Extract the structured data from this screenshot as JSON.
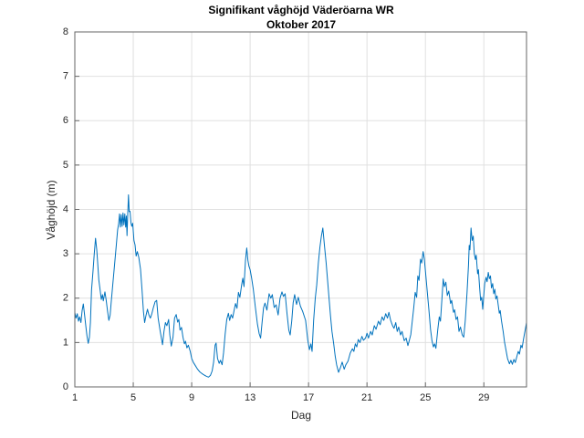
{
  "colors": {
    "background": "#ffffff",
    "line": "#0072BD",
    "grid": "#e0e0e0",
    "axis_box": "#666666",
    "tick_label": "#262626",
    "title_text": "#000000"
  },
  "chart_data": {
    "type": "line",
    "title": "Signifikant våghöjd Väderöarna WR",
    "subtitle": "Oktober 2017",
    "xlabel": "Dag",
    "ylabel": "Våghöjd (m)",
    "xlim": [
      1,
      31.92
    ],
    "ylim": [
      0,
      8
    ],
    "x_ticks": [
      1,
      5,
      9,
      13,
      17,
      21,
      25,
      29
    ],
    "y_ticks": [
      0,
      1,
      2,
      3,
      4,
      5,
      6,
      7,
      8
    ],
    "grid": true,
    "legend": "none",
    "series_name": "Signifikant våghöjd (m)",
    "points": [
      [
        1.0,
        1.68
      ],
      [
        1.08,
        1.55
      ],
      [
        1.17,
        1.65
      ],
      [
        1.25,
        1.48
      ],
      [
        1.33,
        1.58
      ],
      [
        1.42,
        1.45
      ],
      [
        1.5,
        1.72
      ],
      [
        1.58,
        1.87
      ],
      [
        1.67,
        1.62
      ],
      [
        1.75,
        1.38
      ],
      [
        1.83,
        1.15
      ],
      [
        1.92,
        0.98
      ],
      [
        2.0,
        1.12
      ],
      [
        2.07,
        1.45
      ],
      [
        2.14,
        2.18
      ],
      [
        2.24,
        2.6
      ],
      [
        2.33,
        3.0
      ],
      [
        2.42,
        3.35
      ],
      [
        2.5,
        3.1
      ],
      [
        2.54,
        2.9
      ],
      [
        2.64,
        2.41
      ],
      [
        2.72,
        2.22
      ],
      [
        2.81,
        1.97
      ],
      [
        2.89,
        2.08
      ],
      [
        2.95,
        1.94
      ],
      [
        3.06,
        2.14
      ],
      [
        3.15,
        1.95
      ],
      [
        3.24,
        1.7
      ],
      [
        3.33,
        1.5
      ],
      [
        3.42,
        1.62
      ],
      [
        3.48,
        1.87
      ],
      [
        3.58,
        2.24
      ],
      [
        3.69,
        2.65
      ],
      [
        3.79,
        3.02
      ],
      [
        3.85,
        3.23
      ],
      [
        3.93,
        3.54
      ],
      [
        4.0,
        3.68
      ],
      [
        4.06,
        3.9
      ],
      [
        4.12,
        3.6
      ],
      [
        4.18,
        3.88
      ],
      [
        4.24,
        3.62
      ],
      [
        4.3,
        3.92
      ],
      [
        4.36,
        3.65
      ],
      [
        4.42,
        3.9
      ],
      [
        4.48,
        3.6
      ],
      [
        4.53,
        3.85
      ],
      [
        4.57,
        3.41
      ],
      [
        4.62,
        3.9
      ],
      [
        4.67,
        4.33
      ],
      [
        4.72,
        3.95
      ],
      [
        4.78,
        3.96
      ],
      [
        4.84,
        3.7
      ],
      [
        4.9,
        3.62
      ],
      [
        4.96,
        3.69
      ],
      [
        5.05,
        3.3
      ],
      [
        5.12,
        3.2
      ],
      [
        5.2,
        2.95
      ],
      [
        5.28,
        3.05
      ],
      [
        5.38,
        2.92
      ],
      [
        5.5,
        2.65
      ],
      [
        5.6,
        2.2
      ],
      [
        5.7,
        1.7
      ],
      [
        5.78,
        1.45
      ],
      [
        5.88,
        1.62
      ],
      [
        5.97,
        1.75
      ],
      [
        6.07,
        1.62
      ],
      [
        6.17,
        1.55
      ],
      [
        6.27,
        1.65
      ],
      [
        6.37,
        1.78
      ],
      [
        6.5,
        1.92
      ],
      [
        6.6,
        1.95
      ],
      [
        6.7,
        1.55
      ],
      [
        6.84,
        1.26
      ],
      [
        6.95,
        1.05
      ],
      [
        7.0,
        0.95
      ],
      [
        7.1,
        1.25
      ],
      [
        7.2,
        1.45
      ],
      [
        7.3,
        1.38
      ],
      [
        7.42,
        1.52
      ],
      [
        7.5,
        1.17
      ],
      [
        7.6,
        0.92
      ],
      [
        7.72,
        1.12
      ],
      [
        7.83,
        1.55
      ],
      [
        7.94,
        1.63
      ],
      [
        8.04,
        1.46
      ],
      [
        8.12,
        1.52
      ],
      [
        8.2,
        1.28
      ],
      [
        8.3,
        1.34
      ],
      [
        8.4,
        1.12
      ],
      [
        8.5,
        0.97
      ],
      [
        8.58,
        1.03
      ],
      [
        8.67,
        0.88
      ],
      [
        8.77,
        0.94
      ],
      [
        8.9,
        0.8
      ],
      [
        9.0,
        0.64
      ],
      [
        9.12,
        0.55
      ],
      [
        9.25,
        0.48
      ],
      [
        9.4,
        0.4
      ],
      [
        9.55,
        0.34
      ],
      [
        9.7,
        0.3
      ],
      [
        9.85,
        0.27
      ],
      [
        10.0,
        0.24
      ],
      [
        10.15,
        0.22
      ],
      [
        10.28,
        0.26
      ],
      [
        10.4,
        0.36
      ],
      [
        10.5,
        0.56
      ],
      [
        10.6,
        0.94
      ],
      [
        10.67,
        0.99
      ],
      [
        10.77,
        0.64
      ],
      [
        10.88,
        0.53
      ],
      [
        10.97,
        0.6
      ],
      [
        11.08,
        0.5
      ],
      [
        11.18,
        0.77
      ],
      [
        11.29,
        1.18
      ],
      [
        11.4,
        1.52
      ],
      [
        11.51,
        1.66
      ],
      [
        11.6,
        1.5
      ],
      [
        11.7,
        1.63
      ],
      [
        11.8,
        1.55
      ],
      [
        11.9,
        1.72
      ],
      [
        12.0,
        1.88
      ],
      [
        12.1,
        1.77
      ],
      [
        12.2,
        2.13
      ],
      [
        12.3,
        2.02
      ],
      [
        12.42,
        2.3
      ],
      [
        12.5,
        2.45
      ],
      [
        12.58,
        2.26
      ],
      [
        12.68,
        2.85
      ],
      [
        12.77,
        3.13
      ],
      [
        12.85,
        2.85
      ],
      [
        12.92,
        2.72
      ],
      [
        13.0,
        2.64
      ],
      [
        13.1,
        2.46
      ],
      [
        13.22,
        2.2
      ],
      [
        13.35,
        1.82
      ],
      [
        13.5,
        1.42
      ],
      [
        13.62,
        1.2
      ],
      [
        13.72,
        1.1
      ],
      [
        13.82,
        1.45
      ],
      [
        13.92,
        1.78
      ],
      [
        14.02,
        1.89
      ],
      [
        14.15,
        1.73
      ],
      [
        14.3,
        2.1
      ],
      [
        14.42,
        2.0
      ],
      [
        14.52,
        2.08
      ],
      [
        14.65,
        1.79
      ],
      [
        14.78,
        1.85
      ],
      [
        14.92,
        1.62
      ],
      [
        15.05,
        2.0
      ],
      [
        15.18,
        2.14
      ],
      [
        15.28,
        2.04
      ],
      [
        15.4,
        2.1
      ],
      [
        15.52,
        1.66
      ],
      [
        15.65,
        1.28
      ],
      [
        15.74,
        1.17
      ],
      [
        15.85,
        1.48
      ],
      [
        15.95,
        1.9
      ],
      [
        16.05,
        2.08
      ],
      [
        16.18,
        1.86
      ],
      [
        16.3,
        2.02
      ],
      [
        16.44,
        1.82
      ],
      [
        16.6,
        1.7
      ],
      [
        16.8,
        1.5
      ],
      [
        16.95,
        1.05
      ],
      [
        17.06,
        0.84
      ],
      [
        17.16,
        0.97
      ],
      [
        17.24,
        0.8
      ],
      [
        17.35,
        1.5
      ],
      [
        17.46,
        2.0
      ],
      [
        17.56,
        2.3
      ],
      [
        17.67,
        2.8
      ],
      [
        17.78,
        3.15
      ],
      [
        17.88,
        3.4
      ],
      [
        17.98,
        3.58
      ],
      [
        18.08,
        3.22
      ],
      [
        18.2,
        2.8
      ],
      [
        18.3,
        2.4
      ],
      [
        18.4,
        2.0
      ],
      [
        18.5,
        1.6
      ],
      [
        18.6,
        1.25
      ],
      [
        18.72,
        0.97
      ],
      [
        18.82,
        0.7
      ],
      [
        18.92,
        0.5
      ],
      [
        19.05,
        0.33
      ],
      [
        19.18,
        0.43
      ],
      [
        19.3,
        0.56
      ],
      [
        19.44,
        0.4
      ],
      [
        19.55,
        0.5
      ],
      [
        19.7,
        0.58
      ],
      [
        19.85,
        0.76
      ],
      [
        20.0,
        0.86
      ],
      [
        20.1,
        0.8
      ],
      [
        20.2,
        0.97
      ],
      [
        20.3,
        0.9
      ],
      [
        20.4,
        1.07
      ],
      [
        20.52,
        1.0
      ],
      [
        20.65,
        1.14
      ],
      [
        20.76,
        1.05
      ],
      [
        20.9,
        1.1
      ],
      [
        21.0,
        1.21
      ],
      [
        21.1,
        1.1
      ],
      [
        21.25,
        1.25
      ],
      [
        21.36,
        1.17
      ],
      [
        21.5,
        1.38
      ],
      [
        21.62,
        1.3
      ],
      [
        21.78,
        1.48
      ],
      [
        21.9,
        1.4
      ],
      [
        22.03,
        1.58
      ],
      [
        22.15,
        1.5
      ],
      [
        22.28,
        1.65
      ],
      [
        22.4,
        1.55
      ],
      [
        22.5,
        1.68
      ],
      [
        22.62,
        1.5
      ],
      [
        22.75,
        1.38
      ],
      [
        22.85,
        1.32
      ],
      [
        22.97,
        1.45
      ],
      [
        23.07,
        1.25
      ],
      [
        23.17,
        1.35
      ],
      [
        23.3,
        1.17
      ],
      [
        23.4,
        1.25
      ],
      [
        23.55,
        1.04
      ],
      [
        23.68,
        1.1
      ],
      [
        23.8,
        0.93
      ],
      [
        23.9,
        1.05
      ],
      [
        24.0,
        1.18
      ],
      [
        24.1,
        1.48
      ],
      [
        24.2,
        1.78
      ],
      [
        24.3,
        2.13
      ],
      [
        24.4,
        2.02
      ],
      [
        24.48,
        2.5
      ],
      [
        24.56,
        2.4
      ],
      [
        24.66,
        2.88
      ],
      [
        24.74,
        2.79
      ],
      [
        24.84,
        3.05
      ],
      [
        24.92,
        2.9
      ],
      [
        25.02,
        2.55
      ],
      [
        25.13,
        2.13
      ],
      [
        25.24,
        1.72
      ],
      [
        25.35,
        1.3
      ],
      [
        25.45,
        1.04
      ],
      [
        25.55,
        0.9
      ],
      [
        25.63,
        0.97
      ],
      [
        25.72,
        0.87
      ],
      [
        25.85,
        1.3
      ],
      [
        25.95,
        1.58
      ],
      [
        26.03,
        1.48
      ],
      [
        26.13,
        1.98
      ],
      [
        26.22,
        2.43
      ],
      [
        26.3,
        2.26
      ],
      [
        26.4,
        2.36
      ],
      [
        26.5,
        2.06
      ],
      [
        26.6,
        2.16
      ],
      [
        26.72,
        1.88
      ],
      [
        26.8,
        1.95
      ],
      [
        26.92,
        1.68
      ],
      [
        27.0,
        1.74
      ],
      [
        27.1,
        1.52
      ],
      [
        27.2,
        1.58
      ],
      [
        27.3,
        1.25
      ],
      [
        27.4,
        1.35
      ],
      [
        27.52,
        1.17
      ],
      [
        27.62,
        1.12
      ],
      [
        27.73,
        1.5
      ],
      [
        27.85,
        2.12
      ],
      [
        27.95,
        2.74
      ],
      [
        28.0,
        3.19
      ],
      [
        28.05,
        3.09
      ],
      [
        28.12,
        3.58
      ],
      [
        28.2,
        3.3
      ],
      [
        28.27,
        3.4
      ],
      [
        28.35,
        3.0
      ],
      [
        28.42,
        2.87
      ],
      [
        28.48,
        2.97
      ],
      [
        28.57,
        2.55
      ],
      [
        28.63,
        2.64
      ],
      [
        28.7,
        2.27
      ],
      [
        28.78,
        1.95
      ],
      [
        28.85,
        2.02
      ],
      [
        28.92,
        1.75
      ],
      [
        29.0,
        2.1
      ],
      [
        29.06,
        2.33
      ],
      [
        29.15,
        2.47
      ],
      [
        29.22,
        2.37
      ],
      [
        29.3,
        2.58
      ],
      [
        29.38,
        2.44
      ],
      [
        29.45,
        2.5
      ],
      [
        29.52,
        2.23
      ],
      [
        29.6,
        2.33
      ],
      [
        29.68,
        2.1
      ],
      [
        29.75,
        2.2
      ],
      [
        29.82,
        1.98
      ],
      [
        29.9,
        2.05
      ],
      [
        29.98,
        1.86
      ],
      [
        30.06,
        1.66
      ],
      [
        30.12,
        1.72
      ],
      [
        30.2,
        1.5
      ],
      [
        30.32,
        1.25
      ],
      [
        30.42,
        1.0
      ],
      [
        30.52,
        0.82
      ],
      [
        30.62,
        0.64
      ],
      [
        30.75,
        0.52
      ],
      [
        30.85,
        0.6
      ],
      [
        30.95,
        0.51
      ],
      [
        31.06,
        0.62
      ],
      [
        31.15,
        0.55
      ],
      [
        31.27,
        0.7
      ],
      [
        31.35,
        0.8
      ],
      [
        31.44,
        0.74
      ],
      [
        31.54,
        0.94
      ],
      [
        31.62,
        0.88
      ],
      [
        31.7,
        1.05
      ],
      [
        31.78,
        1.2
      ],
      [
        31.85,
        1.32
      ],
      [
        31.92,
        1.45
      ]
    ]
  }
}
